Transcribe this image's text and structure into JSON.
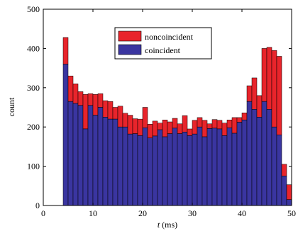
{
  "chart_data": {
    "type": "bar",
    "stacked": true,
    "xlabel_var": "t",
    "xlabel_unit": " (ms)",
    "ylabel": "count",
    "xlim": [
      0,
      50
    ],
    "ylim": [
      0,
      500
    ],
    "xticks": [
      0,
      10,
      20,
      30,
      40,
      50
    ],
    "yticks": [
      0,
      100,
      200,
      300,
      400,
      500
    ],
    "grid": false,
    "legend_position": "top-center",
    "bin_width": 1,
    "x": [
      4,
      5,
      6,
      7,
      8,
      9,
      10,
      11,
      12,
      13,
      14,
      15,
      16,
      17,
      18,
      19,
      20,
      21,
      22,
      23,
      24,
      25,
      26,
      27,
      28,
      29,
      30,
      31,
      32,
      33,
      34,
      35,
      36,
      37,
      38,
      39,
      40,
      41,
      42,
      43,
      44,
      45,
      46,
      47,
      48,
      49
    ],
    "series": [
      {
        "name": "coincident",
        "color": "#3a35a0",
        "values": [
          360,
          265,
          260,
          255,
          195,
          255,
          230,
          250,
          225,
          220,
          220,
          200,
          200,
          182,
          183,
          178,
          198,
          172,
          177,
          193,
          175,
          183,
          197,
          183,
          187,
          178,
          182,
          200,
          175,
          196,
          197,
          195,
          178,
          198,
          184,
          212,
          218,
          265,
          245,
          225,
          265,
          245,
          200,
          180,
          75,
          15
        ]
      },
      {
        "name": "noncoincident",
        "color": "#e8242b",
        "values": [
          68,
          65,
          50,
          35,
          88,
          30,
          53,
          35,
          42,
          45,
          30,
          53,
          35,
          48,
          38,
          42,
          52,
          35,
          38,
          17,
          43,
          30,
          25,
          25,
          42,
          17,
          35,
          24,
          42,
          12,
          22,
          22,
          32,
          20,
          40,
          12,
          18,
          40,
          80,
          55,
          135,
          158,
          195,
          200,
          30,
          38
        ]
      }
    ]
  }
}
